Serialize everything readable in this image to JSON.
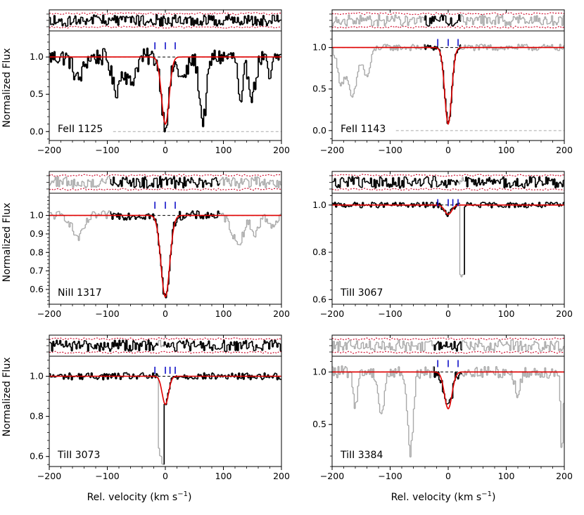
{
  "figure": {
    "xlabel": "Rel. velocity",
    "xunit": "(km s",
    "xunit_sup": "−1",
    "xunit_end": ")",
    "ylabel": "Normalized Flux"
  },
  "colors": {
    "data": "#000000",
    "masked": "#a9a9a9",
    "model": "#e00000",
    "error_band": "#d01030",
    "component_ticks": "#1010c8",
    "zero_line": "#a9a9a9"
  },
  "chart_data": [
    {
      "type": "line",
      "ion": "FeII 1125",
      "xlim": [
        -200,
        200
      ],
      "ylim": [
        -0.12,
        1.35
      ],
      "x_ticks": [
        -200,
        -100,
        0,
        100,
        200
      ],
      "y_ticks": [
        0.0,
        0.5,
        1.0
      ],
      "y_tick_labels": [
        "0.0",
        "0.5",
        "1.0"
      ],
      "show_zero_line": true,
      "zero_line_from": -90,
      "component_velocities": [
        -18,
        0,
        17
      ],
      "component_tick_y": 1.15,
      "absorption_features": [
        {
          "center": -85,
          "depth": 0.45,
          "width": 7
        },
        {
          "center": -60,
          "depth": 0.35,
          "width": 8
        },
        {
          "center": 65,
          "depth": 0.85,
          "width": 6
        },
        {
          "center": 130,
          "depth": 0.7,
          "width": 4
        },
        {
          "center": 150,
          "depth": 0.5,
          "width": 6
        },
        {
          "center": 30,
          "depth": 0.3,
          "width": 8
        },
        {
          "center": 180,
          "depth": 0.3,
          "width": 4
        },
        {
          "center": -150,
          "depth": 0.3,
          "width": 8
        }
      ],
      "model": {
        "center": 0,
        "depth": 0.9,
        "width": 6.5
      },
      "masked_ranges": [],
      "noise": 0.12,
      "residual_masked_ranges": []
    },
    {
      "type": "line",
      "ion": "FeII 1143",
      "xlim": [
        -200,
        200
      ],
      "ylim": [
        -0.12,
        1.2
      ],
      "x_ticks": [
        -200,
        -100,
        0,
        100,
        200
      ],
      "y_ticks": [
        0.0,
        0.5,
        1.0
      ],
      "y_tick_labels": [
        "0.0",
        "0.5",
        "1.0"
      ],
      "show_zero_line": true,
      "zero_line_from": -90,
      "component_velocities": [
        -18,
        0,
        17
      ],
      "component_tick_y": 1.06,
      "absorption_features": [
        {
          "center": -165,
          "depth": 0.6,
          "width": 8
        },
        {
          "center": -185,
          "depth": 0.4,
          "width": 6
        },
        {
          "center": -140,
          "depth": 0.35,
          "width": 6
        }
      ],
      "model": {
        "center": 0,
        "depth": 0.92,
        "width": 6.0
      },
      "masked_ranges": [
        [
          -200,
          -40
        ],
        [
          22,
          200
        ]
      ],
      "noise": 0.04,
      "residual_masked_ranges": [
        [
          -200,
          -40
        ],
        [
          22,
          200
        ]
      ]
    },
    {
      "type": "line",
      "ion": "NiII 1317",
      "xlim": [
        -200,
        200
      ],
      "ylim": [
        0.52,
        1.12
      ],
      "x_ticks": [
        -200,
        -100,
        0,
        100,
        200
      ],
      "y_ticks": [
        0.6,
        0.7,
        0.8,
        0.9,
        1.0
      ],
      "y_tick_labels": [
        "0.6",
        "0.7",
        "0.8",
        "0.9",
        "1.0"
      ],
      "show_zero_line": false,
      "zero_line_from": -200,
      "component_velocities": [
        -18,
        0,
        17
      ],
      "component_tick_y": 1.055,
      "absorption_features": [
        {
          "center": -150,
          "depth": 0.12,
          "width": 10
        },
        {
          "center": 125,
          "depth": 0.15,
          "width": 10
        },
        {
          "center": 155,
          "depth": 0.1,
          "width": 6
        },
        {
          "center": 185,
          "depth": 0.05,
          "width": 8
        }
      ],
      "model": {
        "center": 0,
        "depth": 0.44,
        "width": 7.5
      },
      "masked_ranges": [
        [
          -200,
          -95
        ],
        [
          95,
          200
        ]
      ],
      "noise": 0.025,
      "residual_masked_ranges": [
        [
          -200,
          -95
        ],
        [
          95,
          200
        ]
      ]
    },
    {
      "type": "line",
      "ion": "TiII 3067",
      "xlim": [
        -200,
        200
      ],
      "ylim": [
        0.58,
        1.05
      ],
      "x_ticks": [
        -200,
        -100,
        0,
        100,
        200
      ],
      "y_ticks": [
        0.6,
        0.8,
        1.0
      ],
      "y_tick_labels": [
        "0.6",
        "0.8",
        "1.0"
      ],
      "show_zero_line": false,
      "zero_line_from": -200,
      "component_velocities": [
        -18,
        0,
        8,
        17
      ],
      "component_tick_y": 1.01,
      "absorption_features": [],
      "model": {
        "center": 0,
        "depth": 0.04,
        "width": 6.0
      },
      "masked_ranges": [
        [
          20,
          28
        ]
      ],
      "noise": 0.012,
      "residual_masked_ranges": [
        [
          18,
          30
        ]
      ]
    },
    {
      "type": "line",
      "ion": "TiII 3073",
      "xlim": [
        -200,
        200
      ],
      "ylim": [
        0.55,
        1.1
      ],
      "x_ticks": [
        -200,
        -100,
        0,
        100,
        200
      ],
      "y_ticks": [
        0.6,
        0.8,
        1.0
      ],
      "y_tick_labels": [
        "0.6",
        "0.8",
        "1.0"
      ],
      "show_zero_line": false,
      "zero_line_from": -200,
      "component_velocities": [
        -18,
        0,
        8,
        17
      ],
      "component_tick_y": 1.03,
      "absorption_features": [],
      "model": {
        "center": 0,
        "depth": 0.14,
        "width": 5.5
      },
      "masked_ranges": [
        [
          -12,
          -2
        ]
      ],
      "noise": 0.018,
      "residual_masked_ranges": [
        [
          -12,
          -2
        ]
      ]
    },
    {
      "type": "line",
      "ion": "TiII 3384",
      "xlim": [
        -200,
        200
      ],
      "ylim": [
        0.1,
        1.15
      ],
      "x_ticks": [
        -200,
        -100,
        0,
        100,
        200
      ],
      "y_ticks": [
        0.5,
        1.0
      ],
      "y_tick_labels": [
        "0.5",
        "1.0"
      ],
      "show_zero_line": false,
      "zero_line_from": -200,
      "component_velocities": [
        -18,
        0,
        17
      ],
      "component_tick_y": 1.08,
      "absorption_features": [
        {
          "center": -65,
          "depth": 0.75,
          "width": 5
        },
        {
          "center": -115,
          "depth": 0.4,
          "width": 5
        },
        {
          "center": -160,
          "depth": 0.3,
          "width": 4
        },
        {
          "center": 120,
          "depth": 0.2,
          "width": 5
        },
        {
          "center": 196,
          "depth": 0.8,
          "width": 2
        }
      ],
      "model": {
        "center": 0,
        "depth": 0.35,
        "width": 6.5
      },
      "masked_ranges": [
        [
          -200,
          -25
        ],
        [
          25,
          200
        ]
      ],
      "noise": 0.06,
      "residual_masked_ranges": [
        [
          -200,
          -25
        ],
        [
          25,
          200
        ]
      ]
    }
  ]
}
